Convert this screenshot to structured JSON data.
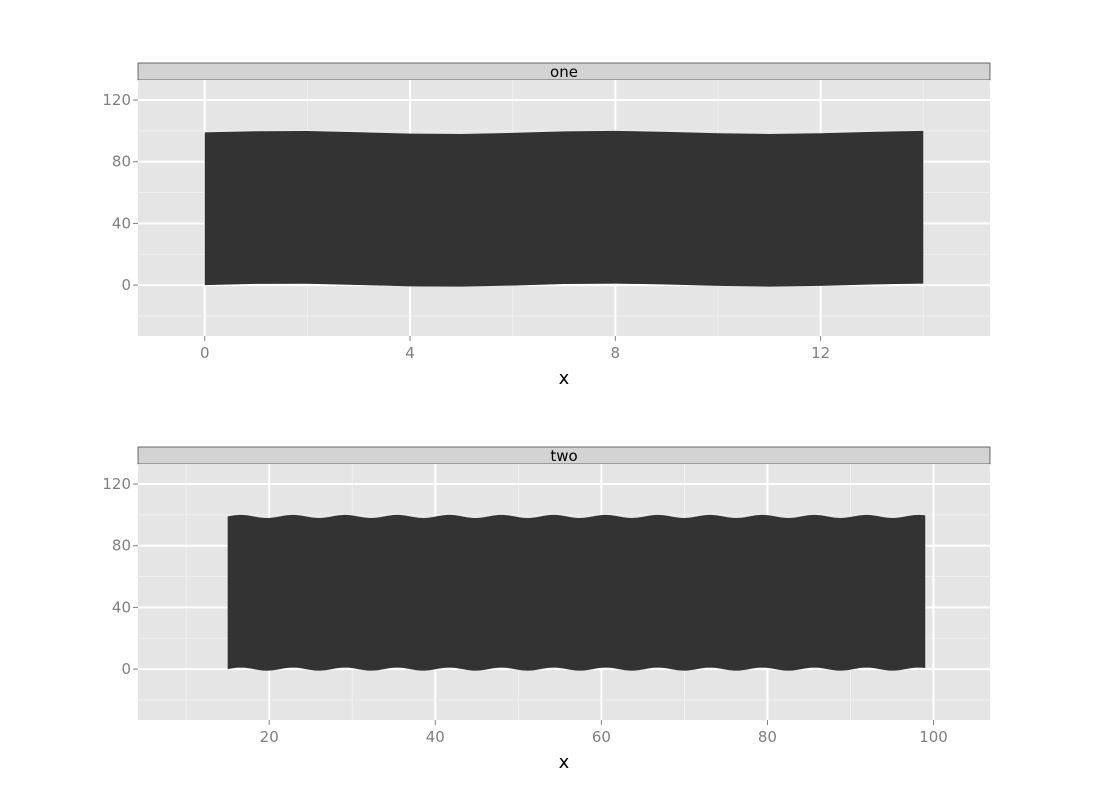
{
  "chart_data": [
    {
      "type": "area",
      "facet_label": "one",
      "xlabel": "x",
      "ylabel": "",
      "xlim": [
        -1.3,
        15.3
      ],
      "ylim": [
        -33,
        133
      ],
      "x_ticks": [
        0,
        4,
        8,
        12
      ],
      "y_ticks": [
        0,
        40,
        80,
        120
      ],
      "grid": true,
      "fill_color": "#333333",
      "panel_color": "#e5e5e5",
      "series": [
        {
          "x": [
            0,
            1,
            2,
            3,
            4,
            5,
            6,
            7,
            8,
            9,
            10,
            11,
            12,
            13,
            14
          ],
          "ymin": [
            0.0,
            0.8,
            0.9,
            0.1,
            -0.8,
            -1.0,
            -0.3,
            0.7,
            1.0,
            0.4,
            -0.5,
            -1.0,
            -0.5,
            0.4,
            1.0
          ],
          "ymax": [
            99.0,
            99.8,
            99.9,
            99.1,
            98.2,
            98.0,
            98.7,
            99.7,
            100.0,
            99.4,
            98.5,
            98.0,
            98.5,
            99.4,
            100.0
          ]
        }
      ]
    },
    {
      "type": "area",
      "facet_label": "two",
      "xlabel": "x",
      "ylabel": "",
      "xlim": [
        4.2,
        106.8
      ],
      "ylim": [
        -33,
        133
      ],
      "x_ticks": [
        20,
        40,
        60,
        80,
        100
      ],
      "y_ticks": [
        0,
        40,
        80,
        120
      ],
      "grid": true,
      "fill_color": "#333333",
      "panel_color": "#e5e5e5",
      "series": [
        {
          "x_start": 15,
          "x_end": 99,
          "ymin_mean": 0,
          "ymax_mean": 99,
          "ripple_amplitude": 1,
          "ripple_period": 6.28
        }
      ]
    }
  ]
}
